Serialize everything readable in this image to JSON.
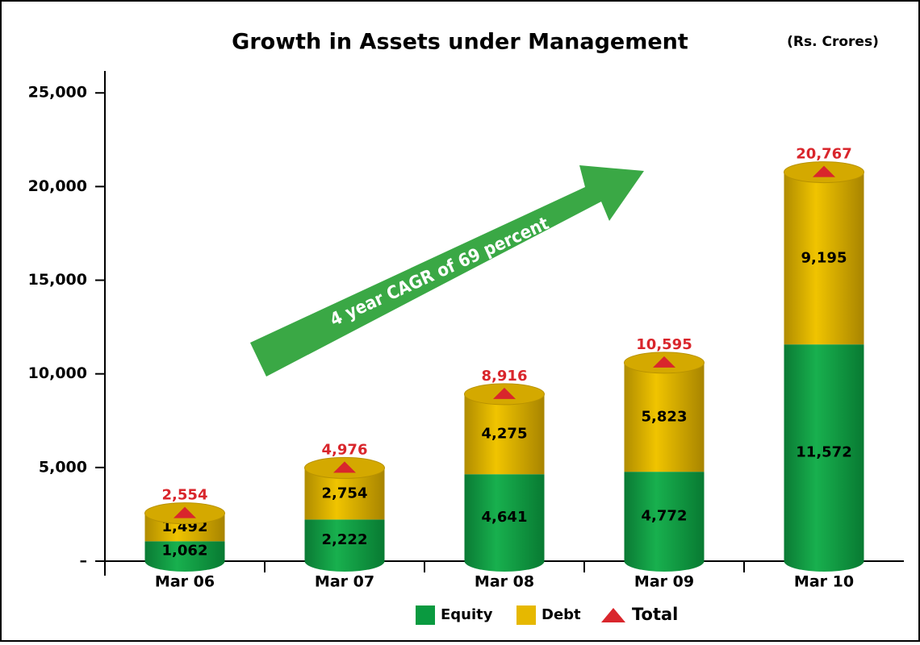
{
  "chart_data": {
    "type": "stacked_bar",
    "title": "Growth in Assets under Management",
    "subtitle": "(Rs. Crores)",
    "annotation": "4 year CAGR of 69 percent",
    "categories": [
      "Mar 06",
      "Mar 07",
      "Mar 08",
      "Mar 09",
      "Mar 10"
    ],
    "series": [
      {
        "name": "Equity",
        "color": "#0a9a40",
        "values": [
          1062,
          2222,
          4641,
          4772,
          11572
        ],
        "value_labels": [
          "1,062",
          "2,222",
          "4,641",
          "4,772",
          "11,572"
        ]
      },
      {
        "name": "Debt",
        "color": "#e6b800",
        "values": [
          1492,
          2754,
          4275,
          5823,
          9195
        ],
        "value_labels": [
          "1,492",
          "2,754",
          "4,275",
          "5,823",
          "9,195"
        ]
      },
      {
        "name": "Total",
        "color": "#d9262c",
        "values": [
          2554,
          4976,
          8916,
          10595,
          20767
        ],
        "value_labels": [
          "2,554",
          "4,976",
          "8,916",
          "10,595",
          "20,767"
        ]
      }
    ],
    "ylim": [
      0,
      26000
    ],
    "yticks": [
      {
        "value": 0,
        "label": "–"
      },
      {
        "value": 5000,
        "label": "5,000"
      },
      {
        "value": 10000,
        "label": "10,000"
      },
      {
        "value": 15000,
        "label": "15,000"
      },
      {
        "value": 20000,
        "label": "20,000"
      },
      {
        "value": 25000,
        "label": "25,000"
      }
    ]
  }
}
